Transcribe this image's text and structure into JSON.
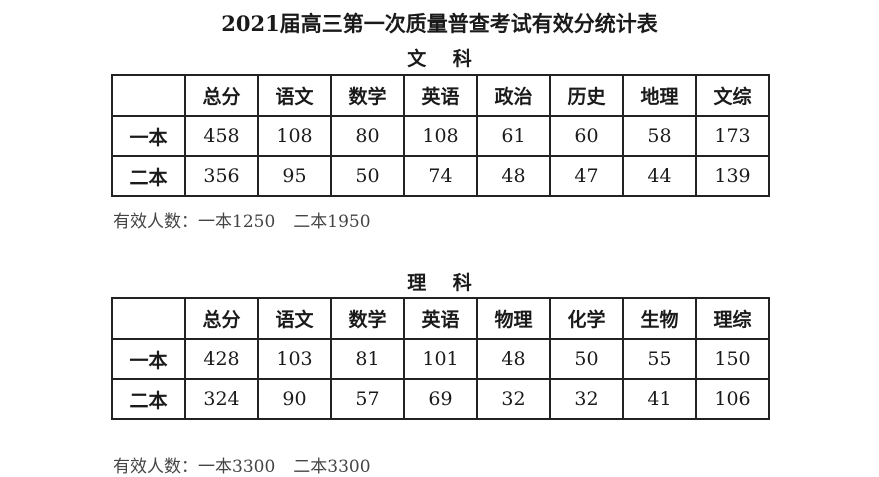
{
  "title": "2021届高三第一次质量普查考试有效分统计表",
  "sections": [
    {
      "name": "文 科",
      "headers": [
        "",
        "总分",
        "语文",
        "数学",
        "英语",
        "政治",
        "历史",
        "地理",
        "文综"
      ],
      "rows": [
        [
          "一本",
          "458",
          "108",
          "80",
          "108",
          "61",
          "60",
          "58",
          "173"
        ],
        [
          "二本",
          "356",
          "95",
          "50",
          "74",
          "48",
          "47",
          "44",
          "139"
        ]
      ],
      "note_label": "有效人数：",
      "note_items": [
        "一本1250",
        "二本1950"
      ]
    },
    {
      "name": "理 科",
      "headers": [
        "",
        "总分",
        "语文",
        "数学",
        "英语",
        "物理",
        "化学",
        "生物",
        "理综"
      ],
      "rows": [
        [
          "一本",
          "428",
          "103",
          "81",
          "101",
          "48",
          "50",
          "55",
          "150"
        ],
        [
          "二本",
          "324",
          "90",
          "57",
          "69",
          "32",
          "32",
          "41",
          "106"
        ]
      ],
      "note_label": "有效人数：",
      "note_items": [
        "一本3300",
        "二本3300"
      ]
    }
  ]
}
